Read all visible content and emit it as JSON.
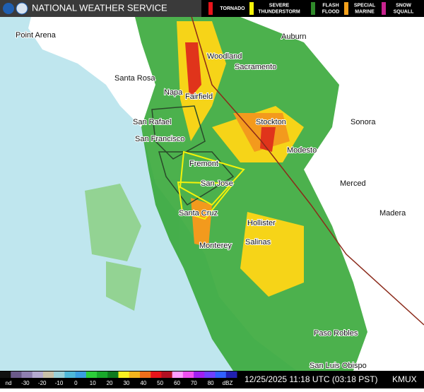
{
  "header": {
    "title": "NATIONAL WEATHER SERVICE"
  },
  "warnings": [
    {
      "lines": [
        "TORNADO"
      ],
      "color": "#e8141b"
    },
    {
      "lines": [
        "SEVERE",
        "THUNDERSTORM"
      ],
      "color": "#f5f20a"
    },
    {
      "lines": [
        "FLASH",
        "FLOOD"
      ],
      "color": "#2f8a2a"
    },
    {
      "lines": [
        "SPECIAL",
        "MARINE"
      ],
      "color": "#f5a21c"
    },
    {
      "lines": [
        "SNOW",
        "SQUALL"
      ],
      "color": "#c8238f"
    }
  ],
  "cities": [
    "Point Arena",
    "Auburn",
    "Woodland",
    "Sacramento",
    "Santa Rosa",
    "Napa",
    "Fairfield",
    "San Rafael",
    "Stockton",
    "Sonora",
    "San Francisco",
    "Modesto",
    "Fremont",
    "San Jose",
    "Merced",
    "Santa Cruz",
    "Madera",
    "Hollister",
    "Salinas",
    "Monterey",
    "Paso Robles",
    "San Luis Obispo"
  ],
  "scale": {
    "labels": [
      "nd",
      "-30",
      "-20",
      "-10",
      "0",
      "10",
      "20",
      "30",
      "40",
      "50",
      "60",
      "70",
      "80",
      "dBZ"
    ]
  },
  "footer": {
    "timestamp": "12/25/2025 11:18 UTC (03:18 PST)",
    "station": "KMUX"
  }
}
